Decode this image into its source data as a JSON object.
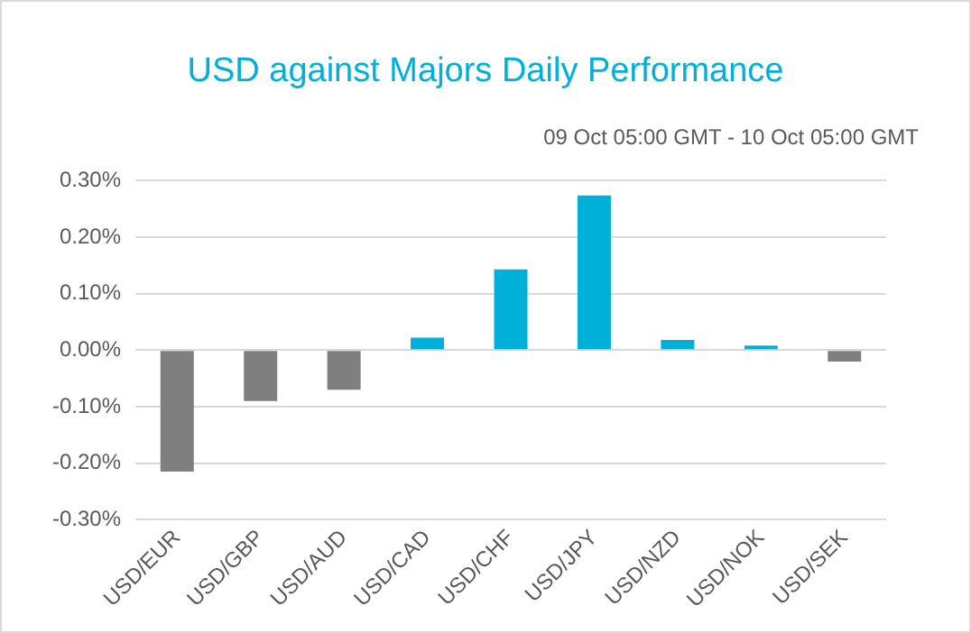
{
  "chart_data": {
    "type": "bar",
    "title": "USD against Majors Daily Performance",
    "subtitle": "09 Oct 05:00 GMT - 10 Oct 05:00 GMT",
    "categories": [
      "USD/EUR",
      "USD/GBP",
      "USD/AUD",
      "USD/CAD",
      "USD/CHF",
      "USD/JPY",
      "USD/NZD",
      "USD/NOK",
      "USD/SEK"
    ],
    "values": [
      -0.215,
      -0.09,
      -0.07,
      0.022,
      0.143,
      0.274,
      0.018,
      0.008,
      -0.02
    ],
    "colors": [
      "#7f7f7f",
      "#7f7f7f",
      "#7f7f7f",
      "#00b0d8",
      "#00b0d8",
      "#00b0d8",
      "#00b0d8",
      "#00b0d8",
      "#7f7f7f"
    ],
    "ylim": [
      -0.3,
      0.3
    ],
    "yticks": [
      {
        "value": -0.3,
        "label": "-0.30%"
      },
      {
        "value": -0.2,
        "label": "-0.20%"
      },
      {
        "value": -0.1,
        "label": "-0.10%"
      },
      {
        "value": 0,
        "label": "0.00%"
      },
      {
        "value": 0.1,
        "label": "0.10%"
      },
      {
        "value": 0.2,
        "label": "0.20%"
      },
      {
        "value": 0.3,
        "label": "0.30%"
      }
    ],
    "grid": "y",
    "legend": false
  }
}
